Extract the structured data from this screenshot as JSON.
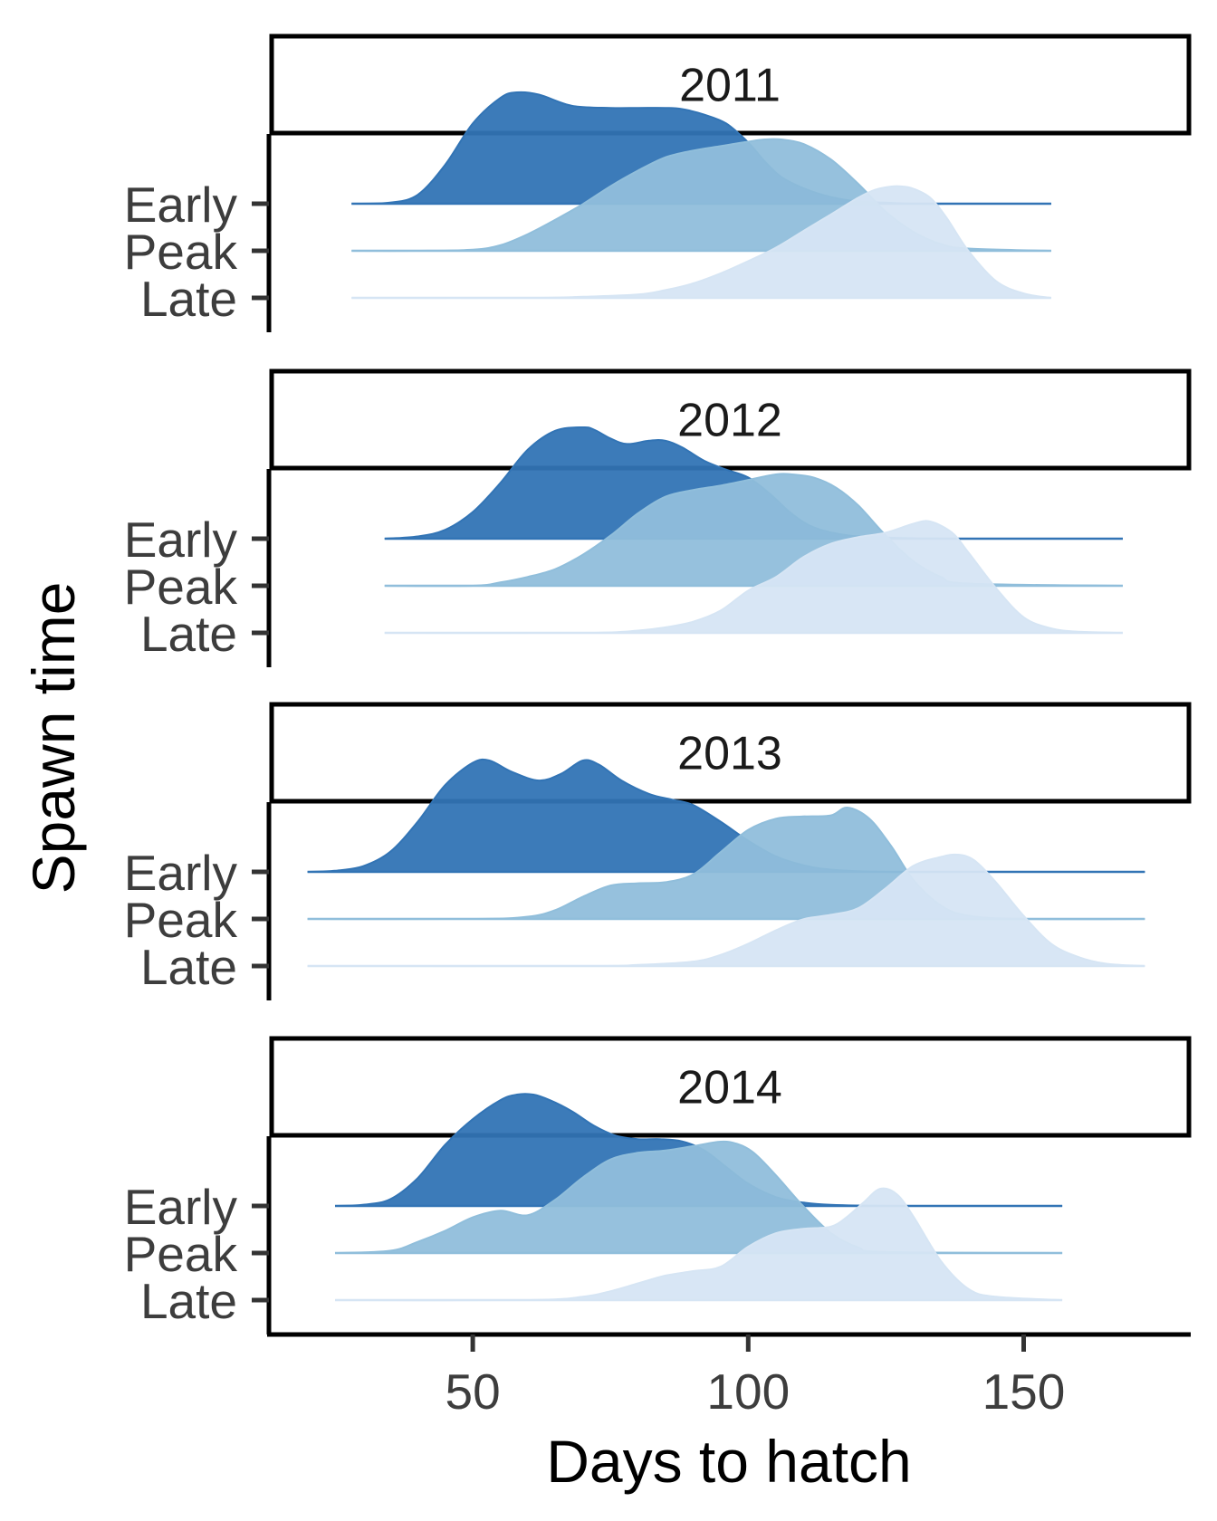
{
  "chart_data": {
    "type": "ridgeline",
    "xlabel": "Days to hatch",
    "ylabel": "Spawn time",
    "xlim": [
      13,
      180
    ],
    "x_ticks": [
      50,
      100,
      150
    ],
    "categories": [
      "Early",
      "Peak",
      "Late"
    ],
    "colors": {
      "Early": "#3274b5",
      "Peak": "#90bedb",
      "Late": "#d6e5f4"
    },
    "fill_opacity": 0.95,
    "panels": [
      {
        "year": "2011",
        "range": [
          28,
          155
        ],
        "series": [
          {
            "name": "Early",
            "x": [
              28,
              35,
              40,
              45,
              50,
              55,
              58,
              62,
              68,
              75,
              80,
              85,
              88,
              92,
              96,
              100,
              103,
              106,
              110,
              115,
              120,
              125,
              130,
              140,
              155
            ],
            "density": [
              0,
              0.01,
              0.08,
              0.35,
              0.72,
              0.95,
              1.0,
              0.98,
              0.88,
              0.86,
              0.86,
              0.86,
              0.85,
              0.8,
              0.72,
              0.55,
              0.38,
              0.24,
              0.14,
              0.06,
              0.02,
              0.01,
              0,
              0,
              0
            ]
          },
          {
            "name": "Peak",
            "x": [
              28,
              40,
              50,
              55,
              60,
              65,
              70,
              75,
              80,
              85,
              90,
              95,
              100,
              103,
              106,
              110,
              115,
              120,
              125,
              130,
              135,
              140,
              155
            ],
            "density": [
              0,
              0,
              0.01,
              0.05,
              0.15,
              0.28,
              0.42,
              0.58,
              0.72,
              0.84,
              0.9,
              0.94,
              0.98,
              1.0,
              1.0,
              0.96,
              0.82,
              0.6,
              0.35,
              0.17,
              0.06,
              0.02,
              0
            ]
          },
          {
            "name": "Late",
            "x": [
              28,
              60,
              70,
              80,
              85,
              90,
              95,
              100,
              105,
              110,
              115,
              120,
              123,
              126,
              128,
              130,
              133,
              136,
              140,
              145,
              150,
              155
            ],
            "density": [
              0,
              0,
              0.01,
              0.03,
              0.07,
              0.13,
              0.22,
              0.33,
              0.45,
              0.6,
              0.75,
              0.9,
              0.97,
              1.0,
              1.0,
              0.98,
              0.9,
              0.72,
              0.42,
              0.15,
              0.04,
              0
            ]
          }
        ]
      },
      {
        "year": "2012",
        "range": [
          34,
          168
        ],
        "series": [
          {
            "name": "Early",
            "x": [
              34,
              40,
              45,
              50,
              55,
              60,
              65,
              70,
              72,
              75,
              78,
              82,
              85,
              88,
              92,
              96,
              100,
              104,
              108,
              112,
              118,
              125,
              135,
              150,
              168
            ],
            "density": [
              0,
              0.02,
              0.08,
              0.24,
              0.5,
              0.8,
              0.97,
              1.0,
              0.98,
              0.9,
              0.85,
              0.88,
              0.88,
              0.82,
              0.7,
              0.62,
              0.55,
              0.4,
              0.22,
              0.1,
              0.03,
              0.01,
              0,
              0,
              0
            ]
          },
          {
            "name": "Peak",
            "x": [
              34,
              50,
              55,
              60,
              65,
              70,
              75,
              80,
              85,
              90,
              95,
              100,
              105,
              108,
              112,
              116,
              120,
              125,
              130,
              135,
              140,
              168
            ],
            "density": [
              0,
              0,
              0.03,
              0.08,
              0.15,
              0.28,
              0.45,
              0.65,
              0.8,
              0.86,
              0.9,
              0.95,
              1.0,
              1.0,
              0.97,
              0.88,
              0.72,
              0.45,
              0.22,
              0.08,
              0.02,
              0
            ]
          },
          {
            "name": "Late",
            "x": [
              34,
              70,
              80,
              85,
              90,
              95,
              100,
              105,
              110,
              115,
              120,
              125,
              130,
              133,
              137,
              140,
              145,
              150,
              155,
              160,
              168
            ],
            "density": [
              0,
              0,
              0.02,
              0.05,
              0.1,
              0.2,
              0.38,
              0.5,
              0.68,
              0.8,
              0.86,
              0.9,
              0.98,
              1.0,
              0.9,
              0.72,
              0.4,
              0.14,
              0.04,
              0.01,
              0
            ]
          }
        ]
      },
      {
        "year": "2013",
        "range": [
          20,
          172
        ],
        "series": [
          {
            "name": "Early",
            "x": [
              20,
              25,
              30,
              35,
              40,
              45,
              50,
              53,
              57,
              62,
              66,
              70,
              73,
              77,
              82,
              86,
              90,
              95,
              100,
              105,
              110,
              115,
              125,
              140,
              172
            ],
            "density": [
              0,
              0.01,
              0.05,
              0.18,
              0.45,
              0.78,
              0.98,
              1.0,
              0.9,
              0.82,
              0.88,
              1.0,
              0.96,
              0.82,
              0.7,
              0.65,
              0.6,
              0.45,
              0.28,
              0.14,
              0.06,
              0.02,
              0,
              0,
              0
            ]
          },
          {
            "name": "Peak",
            "x": [
              20,
              50,
              60,
              65,
              70,
              75,
              80,
              85,
              90,
              95,
              100,
              105,
              110,
              115,
              118,
              122,
              126,
              130,
              135,
              140,
              150,
              172
            ],
            "density": [
              0,
              0,
              0.02,
              0.08,
              0.2,
              0.3,
              0.32,
              0.33,
              0.4,
              0.6,
              0.8,
              0.9,
              0.92,
              0.93,
              1.0,
              0.9,
              0.65,
              0.35,
              0.12,
              0.03,
              0,
              0
            ]
          },
          {
            "name": "Late",
            "x": [
              20,
              70,
              80,
              90,
              95,
              100,
              105,
              110,
              115,
              120,
              125,
              130,
              135,
              138,
              141,
              145,
              150,
              155,
              160,
              165,
              172
            ],
            "density": [
              0,
              0,
              0.01,
              0.04,
              0.1,
              0.2,
              0.32,
              0.42,
              0.46,
              0.52,
              0.7,
              0.9,
              0.98,
              1.0,
              0.95,
              0.75,
              0.45,
              0.2,
              0.08,
              0.02,
              0
            ]
          }
        ]
      },
      {
        "year": "2014",
        "range": [
          25,
          157
        ],
        "series": [
          {
            "name": "Early",
            "x": [
              25,
              30,
              35,
              40,
              45,
              50,
              55,
              58,
              61,
              64,
              68,
              72,
              76,
              80,
              84,
              88,
              92,
              96,
              100,
              105,
              110,
              115,
              125,
              140,
              157
            ],
            "density": [
              0,
              0.01,
              0.06,
              0.25,
              0.55,
              0.78,
              0.95,
              1.0,
              1.0,
              0.95,
              0.85,
              0.72,
              0.63,
              0.6,
              0.6,
              0.58,
              0.5,
              0.35,
              0.2,
              0.08,
              0.03,
              0.01,
              0,
              0,
              0
            ]
          },
          {
            "name": "Peak",
            "x": [
              25,
              35,
              40,
              45,
              50,
              55,
              60,
              65,
              70,
              75,
              80,
              85,
              90,
              95,
              98,
              101,
              105,
              110,
              115,
              120,
              125,
              157
            ],
            "density": [
              0,
              0.02,
              0.1,
              0.2,
              0.32,
              0.38,
              0.34,
              0.48,
              0.68,
              0.84,
              0.9,
              0.92,
              0.96,
              1.0,
              0.98,
              0.9,
              0.7,
              0.42,
              0.18,
              0.05,
              0.01,
              0
            ]
          },
          {
            "name": "Late",
            "x": [
              25,
              60,
              70,
              75,
              80,
              85,
              90,
              95,
              100,
              105,
              110,
              115,
              118,
              121,
              124,
              127,
              130,
              135,
              140,
              145,
              157
            ],
            "density": [
              0,
              0,
              0.03,
              0.08,
              0.15,
              0.22,
              0.26,
              0.3,
              0.48,
              0.6,
              0.64,
              0.66,
              0.75,
              0.88,
              1.0,
              0.95,
              0.75,
              0.35,
              0.1,
              0.03,
              0
            ]
          }
        ]
      }
    ]
  }
}
